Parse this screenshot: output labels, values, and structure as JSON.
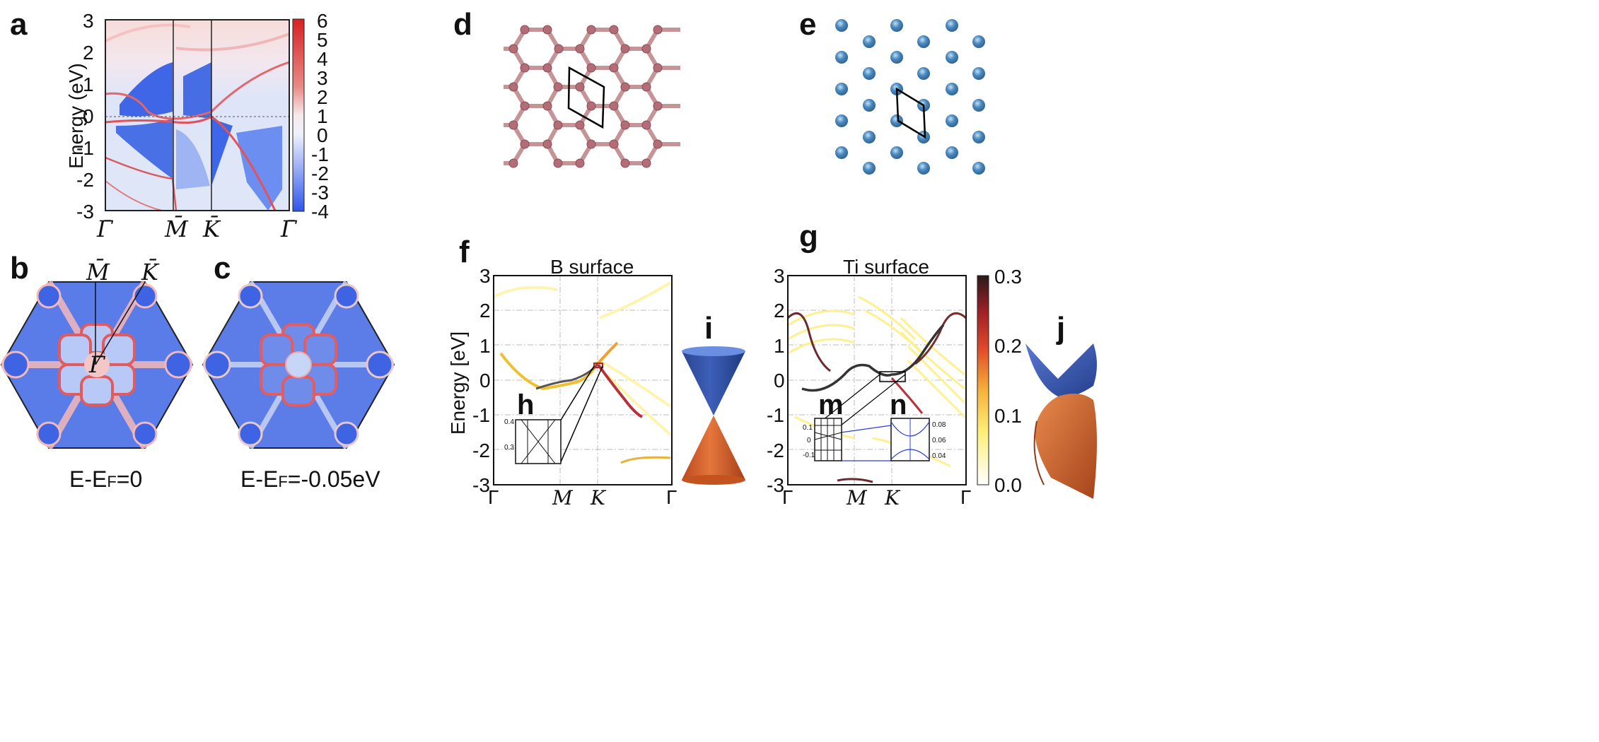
{
  "panel_labels": {
    "a": "a",
    "b": "b",
    "c": "c",
    "d": "d",
    "e": "e",
    "f": "f",
    "g": "g",
    "h": "h",
    "i": "i",
    "j": "j",
    "m": "m",
    "n": "n"
  },
  "colors": {
    "red": "#e8292b",
    "blue": "#3a5fe0",
    "pale_blue": "#c9d5f4",
    "bond": "#c89ca0",
    "atom_b": "#b5727a",
    "atom_ti": "#4b89bf",
    "cone_top": "#2e4a9a",
    "cone_bottom": "#d9622b",
    "cell": "#000000"
  },
  "panel_a": {
    "ylabel": "Energy (eV)",
    "yticks": [
      "3",
      "2",
      "1",
      "0",
      "-1",
      "-2",
      "-3"
    ],
    "kpoints": [
      "Γ̄",
      "M̄",
      "K̄",
      "Γ̄"
    ],
    "colorbar_ticks": [
      "6",
      "5",
      "4",
      "3",
      "2",
      "1",
      "0",
      "-1",
      "-2",
      "-3",
      "-4"
    ]
  },
  "panel_b": {
    "caption": "E-E",
    "caption_sub": "F",
    "caption_tail": "=0",
    "labels": [
      "M̄",
      "K̄",
      "Γ̄"
    ]
  },
  "panel_c": {
    "caption": "E-E",
    "caption_sub": "F",
    "caption_tail": "=-0.05eV"
  },
  "panel_f": {
    "title": "B surface",
    "ylabel": "Energy [eV]",
    "yticks": [
      "3",
      "2",
      "1",
      "0",
      "-1",
      "-2",
      "-3"
    ],
    "kpoints": [
      "Γ",
      "M",
      "K",
      "Γ"
    ],
    "inset_h_ticks": [
      "0.4",
      "0.3"
    ]
  },
  "panel_g": {
    "title": "Ti surface",
    "yticks": [
      "3",
      "2",
      "1",
      "0",
      "-1",
      "-2",
      "-3"
    ],
    "kpoints": [
      "Γ",
      "M",
      "K",
      "Γ"
    ],
    "colorbar_ticks": [
      "0.3",
      "0.2",
      "0.1",
      "0.0"
    ],
    "inset_m_ticks": [
      "0.1",
      "0",
      "-0.1"
    ],
    "inset_n_ticks": [
      "0.08",
      "0.06",
      "0.04"
    ]
  },
  "chart_data": [
    {
      "type": "heatmap",
      "panel": "a",
      "title": "",
      "ylabel": "Energy (eV)",
      "ylim": [
        -3,
        3
      ],
      "x_kpoints": [
        "Γ̄",
        "M̄",
        "K̄",
        "Γ̄"
      ],
      "colorbar_range": [
        -4,
        6
      ]
    },
    {
      "type": "heatmap",
      "panel": "f",
      "title": "B surface",
      "ylabel": "Energy [eV]",
      "ylim": [
        -3,
        3
      ],
      "x_kpoints": [
        "Γ",
        "M",
        "K",
        "Γ"
      ]
    },
    {
      "type": "heatmap",
      "panel": "g",
      "title": "Ti surface",
      "ylabel": "",
      "ylim": [
        -3,
        3
      ],
      "x_kpoints": [
        "Γ",
        "M",
        "K",
        "Γ"
      ],
      "colorbar_range": [
        0.0,
        0.3
      ]
    }
  ]
}
